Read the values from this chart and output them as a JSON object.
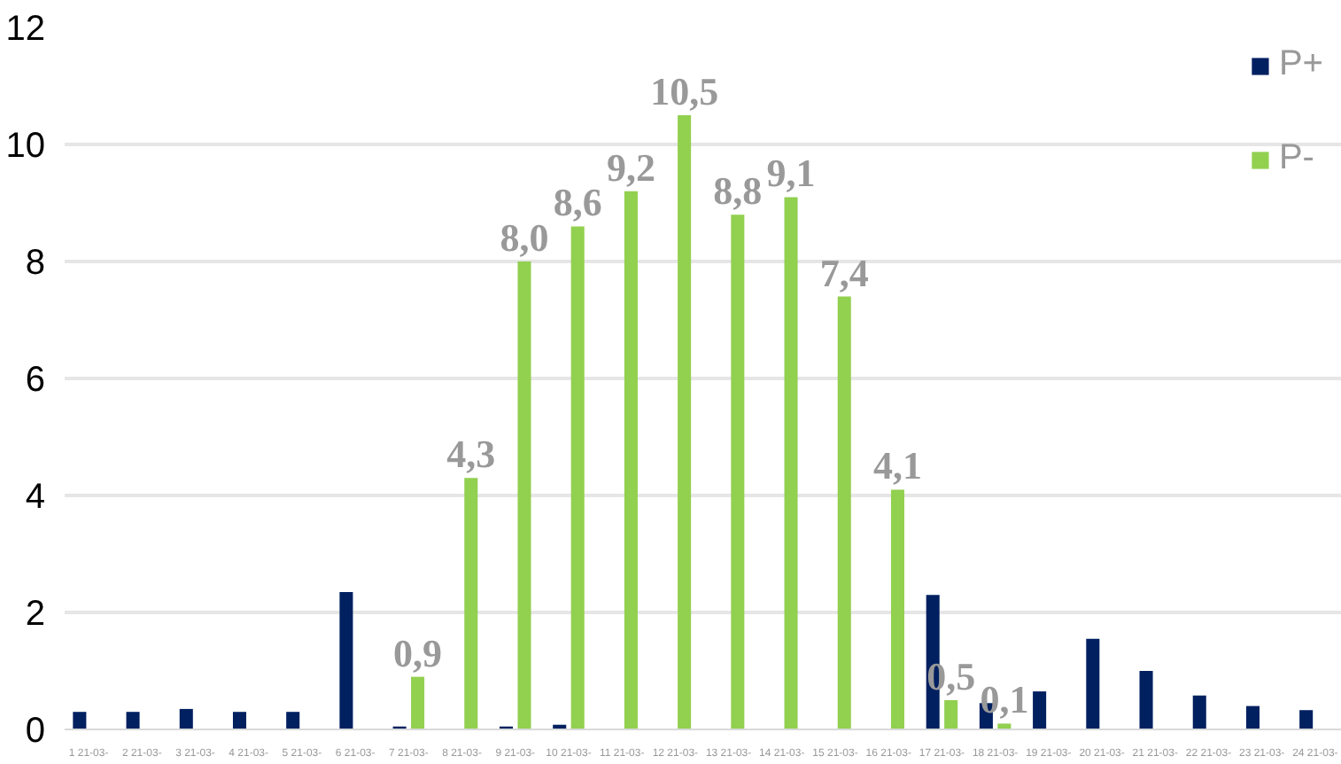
{
  "chart_data": {
    "type": "bar",
    "categories": [
      "1 21-03-",
      "2 21-03-",
      "3 21-03-",
      "4 21-03-",
      "5 21-03-",
      "6 21-03-",
      "7 21-03-",
      "8 21-03-",
      "9 21-03-",
      "10 21-03-",
      "11 21-03-",
      "12 21-03-",
      "13 21-03-",
      "14 21-03-",
      "15 21-03-",
      "16 21-03-",
      "17 21-03-",
      "18 21-03-",
      "19 21-03-",
      "20 21-03-",
      "21 21-03-",
      "22 21-03-",
      "23 21-03-",
      "24 21-03-"
    ],
    "series": [
      {
        "name": "P+",
        "color": "#002060",
        "values": [
          0.3,
          0.3,
          0.35,
          0.3,
          0.3,
          2.35,
          0.05,
          null,
          0.05,
          0.08,
          null,
          null,
          null,
          null,
          null,
          null,
          2.3,
          0.45,
          0.65,
          1.55,
          1.0,
          0.58,
          0.4,
          0.33
        ]
      },
      {
        "name": "P-",
        "color": "#92d050",
        "values": [
          null,
          null,
          null,
          null,
          null,
          null,
          0.9,
          4.3,
          8.0,
          8.6,
          9.2,
          10.5,
          8.8,
          9.1,
          7.4,
          4.1,
          0.5,
          0.1,
          null,
          null,
          null,
          null,
          null,
          null
        ],
        "value_labels": [
          null,
          null,
          null,
          null,
          null,
          null,
          "0,9",
          "4,3",
          "8,0",
          "8,6",
          "9,2",
          "10,5",
          "8,8",
          "9,1",
          "7,4",
          "4,1",
          "0,5",
          "0,1",
          null,
          null,
          null,
          null,
          null,
          null
        ]
      }
    ],
    "ylim": [
      0,
      12
    ],
    "yticks": [
      0,
      2,
      4,
      6,
      8,
      10,
      12
    ],
    "grid": "y",
    "legend": "top right"
  }
}
